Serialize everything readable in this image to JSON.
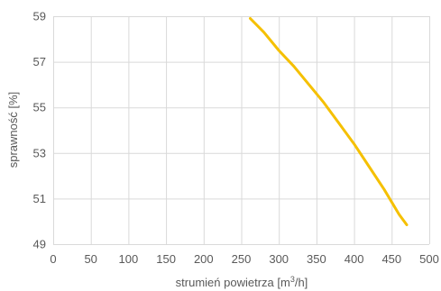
{
  "chart_data": {
    "type": "line",
    "title": "",
    "xlabel_main": "strumień powietrza [m",
    "xlabel_sup": "3",
    "xlabel_tail": "/h]",
    "ylabel": "sprawność [%]",
    "xlim": [
      0,
      500
    ],
    "ylim": [
      49,
      59
    ],
    "x_ticks": [
      0,
      50,
      100,
      150,
      200,
      250,
      300,
      350,
      400,
      450,
      500
    ],
    "y_ticks": [
      49,
      51,
      53,
      55,
      57,
      59
    ],
    "grid": true,
    "legend": "none",
    "series": [
      {
        "color": "#f5c000",
        "x": [
          262,
          280,
          300,
          320,
          340,
          360,
          380,
          400,
          420,
          440,
          460,
          470
        ],
        "y": [
          58.9,
          58.3,
          57.5,
          56.8,
          56.0,
          55.2,
          54.3,
          53.4,
          52.4,
          51.4,
          50.3,
          49.85
        ]
      }
    ]
  }
}
